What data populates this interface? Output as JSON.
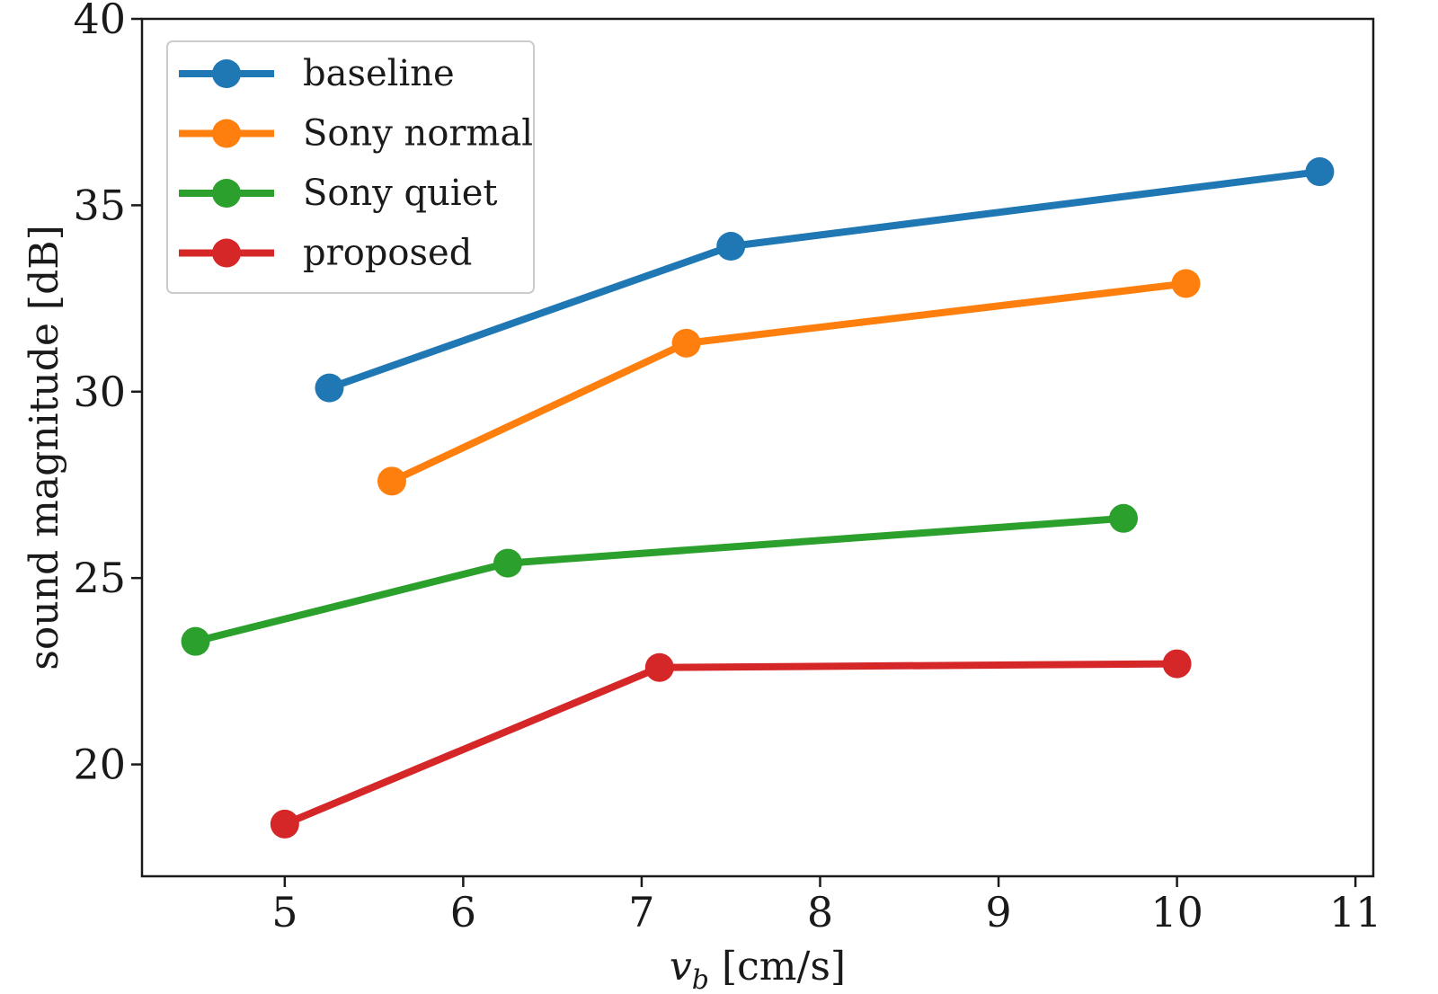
{
  "chart_data": {
    "type": "line",
    "title": "",
    "xlabel": "v_b [cm/s]",
    "xlabel_base": "v",
    "xlabel_subscript": "b",
    "xlabel_unit": " [cm/s]",
    "ylabel": "sound magnitude [dB]",
    "xlim": [
      4.2,
      11.1
    ],
    "ylim": [
      17.0,
      40.0
    ],
    "x_ticks": [
      5,
      6,
      7,
      8,
      9,
      10,
      11
    ],
    "y_ticks": [
      20,
      25,
      30,
      35,
      40
    ],
    "grid": false,
    "legend_position": "top-left",
    "series": [
      {
        "name": "baseline",
        "color": "#1f77b4",
        "x": [
          5.25,
          7.5,
          10.8
        ],
        "y": [
          30.1,
          33.9,
          35.9
        ]
      },
      {
        "name": "Sony normal",
        "color": "#ff7f0e",
        "x": [
          5.6,
          7.25,
          10.05
        ],
        "y": [
          27.6,
          31.3,
          32.9
        ]
      },
      {
        "name": "Sony quiet",
        "color": "#2ca02c",
        "x": [
          4.5,
          6.25,
          9.7
        ],
        "y": [
          23.3,
          25.4,
          26.6
        ]
      },
      {
        "name": "proposed",
        "color": "#d62728",
        "x": [
          5.0,
          7.1,
          10.0
        ],
        "y": [
          18.4,
          22.6,
          22.7
        ]
      }
    ]
  }
}
